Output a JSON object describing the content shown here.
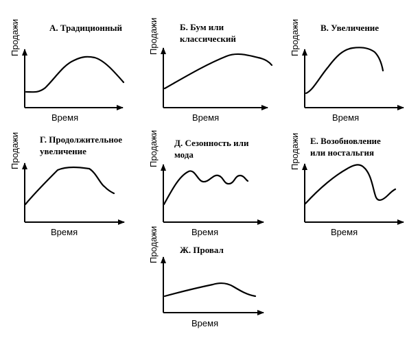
{
  "x_axis_label": "Время",
  "y_axis_label": "Продажи",
  "charts": [
    {
      "id": "a",
      "title_lines": [
        "А. Традиционный"
      ]
    },
    {
      "id": "b",
      "title_lines": [
        "Б. Бум или",
        "классический"
      ]
    },
    {
      "id": "v",
      "title_lines": [
        "В. Увеличение"
      ]
    },
    {
      "id": "g",
      "title_lines": [
        "Г. Продолжительное",
        "увеличение"
      ]
    },
    {
      "id": "d",
      "title_lines": [
        "Д. Сезонность или",
        "мода"
      ]
    },
    {
      "id": "e",
      "title_lines": [
        "Е. Возобновление",
        "или ностальгия"
      ]
    },
    {
      "id": "zh",
      "title_lines": [
        "Ж. Провал"
      ]
    }
  ]
}
